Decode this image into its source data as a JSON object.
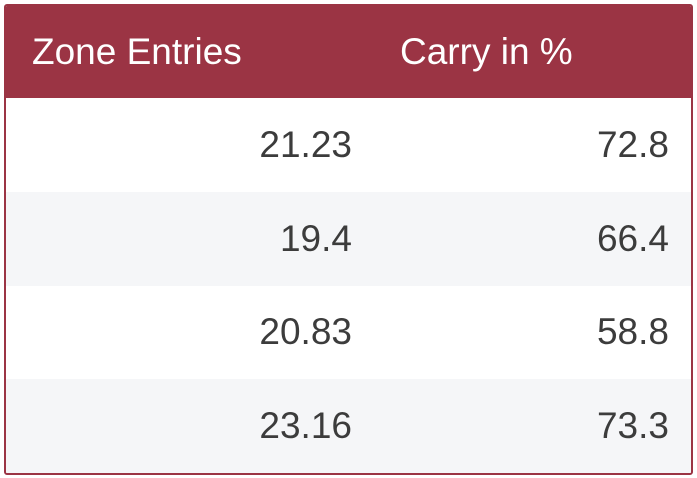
{
  "colors": {
    "header_background": "#9b3444",
    "header_text": "#ffffff",
    "row_alt_background": "#f5f6f8",
    "cell_text": "#3c3c3c"
  },
  "chart_data": {
    "type": "table",
    "columns": [
      "Zone Entries",
      "Carry in %"
    ],
    "rows": [
      [
        "21.23",
        "72.8"
      ],
      [
        "19.4",
        "66.4"
      ],
      [
        "20.83",
        "58.8"
      ],
      [
        "23.16",
        "73.3"
      ]
    ]
  }
}
